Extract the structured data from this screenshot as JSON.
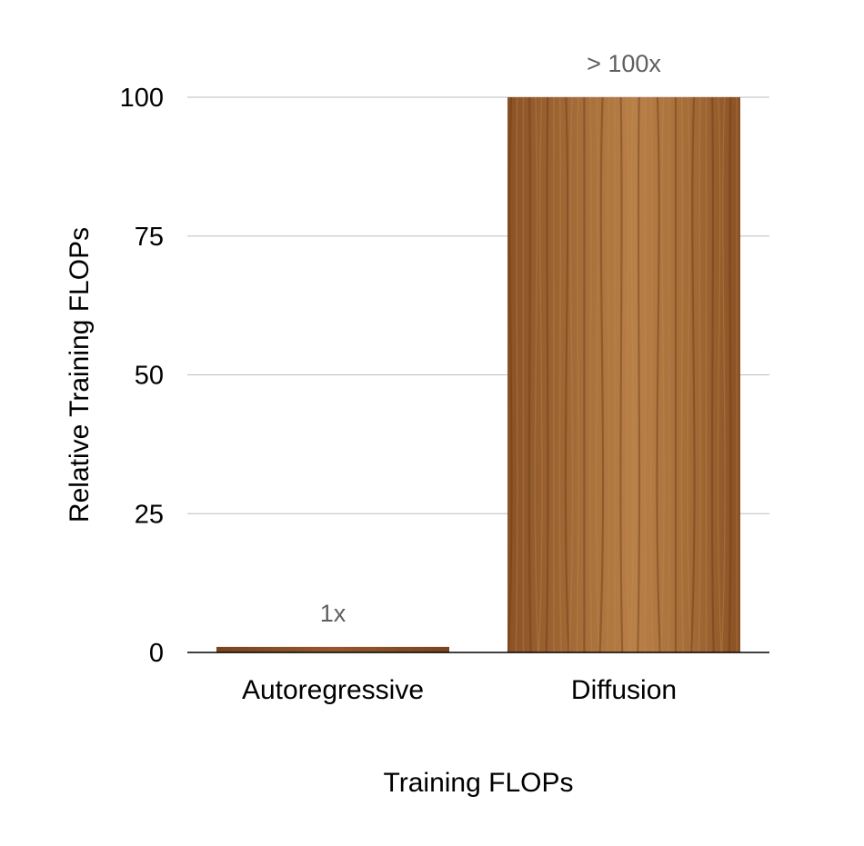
{
  "chart_data": {
    "type": "bar",
    "title": "",
    "xlabel": "Training FLOPs",
    "ylabel": "Relative Training FLOPs",
    "categories": [
      "Autoregressive",
      "Diffusion"
    ],
    "values": [
      1,
      100
    ],
    "data_labels": [
      "1x",
      "> 100x"
    ],
    "ylim": [
      0,
      100
    ],
    "yticks": [
      0,
      25,
      50,
      75,
      100
    ],
    "grid": true,
    "legend": "none",
    "bar_texture": "wood-grain",
    "colors": {
      "bar_base": "#9a5e2e",
      "bar_light": "#b57a45",
      "bar_dark": "#6e3c18",
      "grid": "#bdbdbd",
      "axis": "#000000",
      "data_label": "#5f5f5f"
    }
  }
}
